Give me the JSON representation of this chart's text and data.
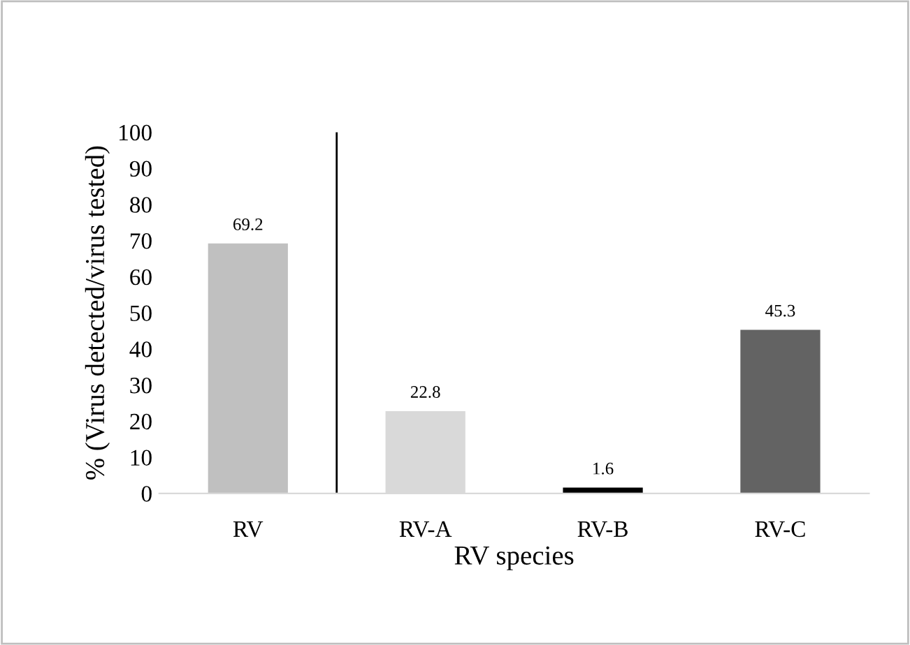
{
  "chart_data": {
    "type": "bar",
    "xlabel": "RV species",
    "ylabel": "% (Virus detected/virus tested)",
    "categories": [
      "RV",
      "RV-A",
      "RV-B",
      "RV-C"
    ],
    "values": [
      69.2,
      22.8,
      1.6,
      45.3
    ],
    "colors": [
      "#c0c0c0",
      "#d9d9d9",
      "#000000",
      "#636363"
    ],
    "data_labels": true,
    "ylim": [
      0,
      100
    ],
    "yticks": [
      0,
      10,
      20,
      30,
      40,
      50,
      60,
      70,
      80,
      90,
      100
    ]
  }
}
